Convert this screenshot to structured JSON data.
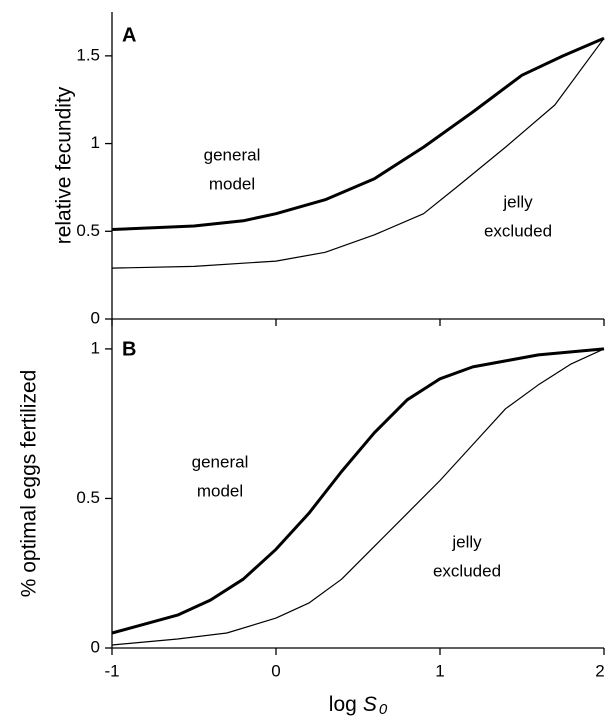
{
  "chart_data": [
    {
      "type": "line",
      "panel_label": "A",
      "ylabel": "relative fecundity",
      "xlim": [
        -1,
        2
      ],
      "xticks": [
        -1,
        0,
        1,
        2
      ],
      "ylim": [
        0,
        1.75
      ],
      "yticks": [
        0,
        0.5,
        1,
        1.5
      ],
      "series": [
        {
          "color": "#000000",
          "width": 3,
          "x": [
            -1,
            -0.5,
            -0.2,
            0,
            0.3,
            0.6,
            0.9,
            1.2,
            1.5,
            1.75,
            2
          ],
          "values": [
            0.51,
            0.53,
            0.56,
            0.6,
            0.68,
            0.8,
            0.98,
            1.18,
            1.39,
            1.5,
            1.6
          ]
        },
        {
          "color": "#000000",
          "width": 1.2,
          "x": [
            -1,
            -0.5,
            0,
            0.3,
            0.6,
            0.9,
            1.1,
            1.4,
            1.7,
            2
          ],
          "values": [
            0.29,
            0.3,
            0.33,
            0.38,
            0.48,
            0.6,
            0.75,
            0.98,
            1.22,
            1.6
          ]
        }
      ],
      "annotations": [
        {
          "lines": [
            "general",
            "model"
          ]
        },
        {
          "lines": [
            "jelly",
            "excluded"
          ]
        }
      ]
    },
    {
      "type": "line",
      "panel_label": "B",
      "ylabel": "% optimal eggs fertilized",
      "x_label_prefix": "log",
      "x_label_symbol": "S",
      "x_label_subscript": "0",
      "xlim": [
        -1,
        2
      ],
      "xticks": [
        -1,
        0,
        1,
        2
      ],
      "ylim": [
        0,
        1.1
      ],
      "yticks": [
        0,
        0.5,
        1
      ],
      "series": [
        {
          "color": "#000000",
          "width": 3,
          "x": [
            -1,
            -0.8,
            -0.6,
            -0.4,
            -0.2,
            0,
            0.2,
            0.4,
            0.6,
            0.8,
            1,
            1.2,
            1.4,
            1.6,
            1.8,
            2
          ],
          "values": [
            0.05,
            0.08,
            0.11,
            0.16,
            0.23,
            0.33,
            0.45,
            0.59,
            0.72,
            0.83,
            0.9,
            0.94,
            0.96,
            0.98,
            0.99,
            1.0
          ]
        },
        {
          "color": "#000000",
          "width": 1.2,
          "x": [
            -1,
            -0.6,
            -0.3,
            0,
            0.2,
            0.4,
            0.6,
            0.8,
            1,
            1.2,
            1.4,
            1.6,
            1.8,
            2
          ],
          "values": [
            0.01,
            0.03,
            0.05,
            0.1,
            0.15,
            0.23,
            0.34,
            0.45,
            0.56,
            0.68,
            0.8,
            0.88,
            0.95,
            1.0
          ]
        }
      ],
      "annotations": [
        {
          "lines": [
            "general",
            "model"
          ]
        },
        {
          "lines": [
            "jelly",
            "excluded"
          ]
        }
      ]
    }
  ]
}
